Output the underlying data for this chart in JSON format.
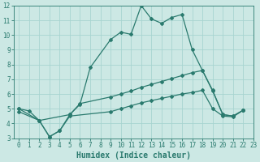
{
  "line1_x": [
    0,
    1,
    2,
    3,
    4,
    5,
    6,
    7,
    9,
    10,
    11,
    12,
    13,
    14,
    15,
    16,
    17,
    18,
    19,
    20,
    21,
    22
  ],
  "line1_y": [
    5.0,
    4.85,
    4.2,
    3.1,
    3.5,
    4.6,
    5.3,
    7.8,
    9.7,
    10.2,
    10.05,
    12.0,
    11.1,
    10.8,
    11.2,
    11.4,
    9.0,
    7.6,
    6.2,
    4.6,
    4.5,
    4.9
  ],
  "line2_x": [
    0,
    2,
    5,
    6,
    9,
    10,
    11,
    12,
    13,
    14,
    15,
    16,
    17,
    18,
    19,
    20,
    21,
    22
  ],
  "line2_y": [
    5.0,
    4.2,
    4.6,
    5.35,
    5.8,
    6.0,
    6.2,
    6.45,
    6.65,
    6.85,
    7.05,
    7.25,
    7.45,
    7.6,
    6.25,
    4.6,
    4.5,
    4.9
  ],
  "line3_x": [
    0,
    2,
    3,
    4,
    5,
    9,
    10,
    11,
    12,
    13,
    14,
    15,
    16,
    17,
    18,
    19,
    20,
    21,
    22
  ],
  "line3_y": [
    4.8,
    4.2,
    3.1,
    3.5,
    4.5,
    4.8,
    5.0,
    5.2,
    5.4,
    5.55,
    5.7,
    5.85,
    6.0,
    6.1,
    6.25,
    5.0,
    4.5,
    4.45,
    4.9
  ],
  "line_color": "#2a7a6e",
  "bg_color": "#cce8e4",
  "grid_color": "#a8d4d0",
  "xlabel": "Humidex (Indice chaleur)",
  "xlim": [
    -0.5,
    23
  ],
  "ylim": [
    3,
    12
  ],
  "yticks": [
    3,
    4,
    5,
    6,
    7,
    8,
    9,
    10,
    11,
    12
  ],
  "xticks": [
    0,
    1,
    2,
    3,
    4,
    5,
    6,
    7,
    8,
    9,
    10,
    11,
    12,
    13,
    14,
    15,
    16,
    17,
    18,
    19,
    20,
    21,
    22,
    23
  ],
  "marker": "D",
  "marker_size": 2.0,
  "line_width": 0.9,
  "xlabel_fontsize": 7,
  "tick_fontsize": 5.5
}
